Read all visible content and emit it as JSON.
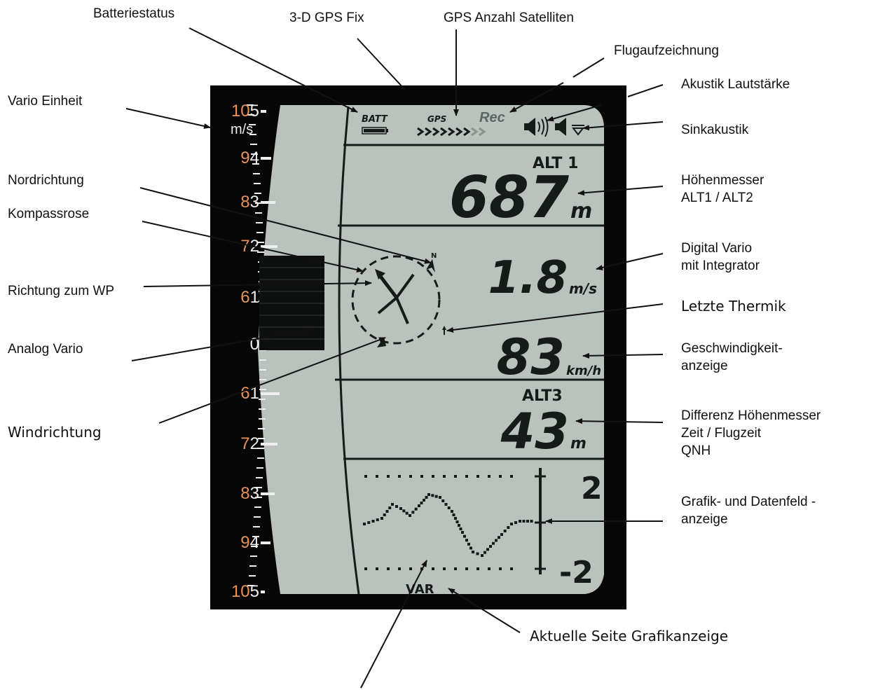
{
  "labels": {
    "batteriestatus": "Batteriestatus",
    "gps_fix": "3-D GPS Fix",
    "gps_satelliten": "GPS Anzahl Satelliten",
    "flugaufzeichnung": "Flugaufzeichnung",
    "akustik_lautstaerke": "Akustik Lautstärke",
    "vario_einheit": "Vario Einheit",
    "sinkakustik": "Sinkakustik",
    "nordrichtung": "Nordrichtung",
    "hoehenmesser": "Höhenmesser\nALT1 / ALT2",
    "kompassrose": "Kompassrose",
    "digital_vario": "Digital Vario\nmit Integrator",
    "richtung_wp": "Richtung zum WP",
    "letzte_thermik": "Letzte Thermik",
    "analog_vario": "Analog Vario",
    "geschwindigkeit": "Geschwindigkeit-\nanzeige",
    "windrichtung": "Windrichtung",
    "differenz": "Differenz  Höhenmesser\nZeit / Flugzeit\nQNH",
    "grafik": "Grafik- und Datenfeld -\nanzeige",
    "aktuelle_seite": "Aktuelle Seite Grafikanzeige"
  },
  "display": {
    "batt_label": "BATT",
    "gps_label": "GPS",
    "rec_label": "Rec",
    "alt1_label": "ALT 1",
    "alt1_value": "687",
    "alt1_unit": "m",
    "vario_value": "1.8",
    "vario_unit": "m/s",
    "speed_value": "83",
    "speed_unit": "km/h",
    "alt3_label": "ALT3",
    "alt3_value": "43",
    "alt3_unit": "m",
    "graph_top": "2",
    "graph_bottom": "-2",
    "page_label": "VAR",
    "compass_north": "N",
    "scale_unit": "m/s",
    "scale_left": [
      {
        "a": "10",
        "b": "5"
      },
      {
        "a": "9",
        "b": "4"
      },
      {
        "a": "8",
        "b": "3"
      },
      {
        "a": "7",
        "b": "2"
      },
      {
        "a": "6",
        "b": "1"
      },
      {
        "a": "",
        "b": "0"
      },
      {
        "a": "6",
        "b": "1"
      },
      {
        "a": "7",
        "b": "2"
      },
      {
        "a": "8",
        "b": "3"
      },
      {
        "a": "9",
        "b": "4"
      },
      {
        "a": "10",
        "b": "5"
      }
    ]
  },
  "colors": {
    "lcd_background": "#b9c2bd",
    "lcd_segment": "#161a18",
    "scale_accent": "#e6935a",
    "device_frame": "#060606"
  }
}
